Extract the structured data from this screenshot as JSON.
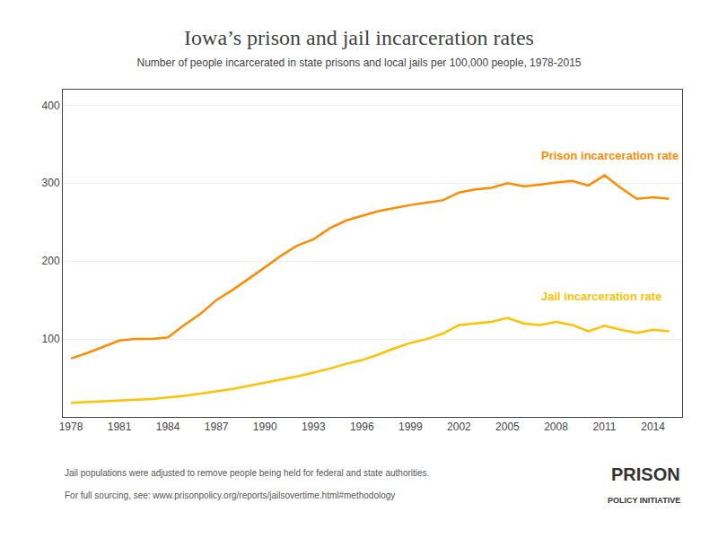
{
  "chart_data": {
    "type": "line",
    "title": "Iowa’s prison and jail incarceration rates",
    "subtitle": "Number of people incarcerated in state prisons and local jails per 100,000 people, 1978-2015",
    "x": [
      1978,
      1979,
      1980,
      1981,
      1982,
      1983,
      1984,
      1985,
      1986,
      1987,
      1988,
      1989,
      1990,
      1991,
      1992,
      1993,
      1994,
      1995,
      1996,
      1997,
      1998,
      1999,
      2000,
      2001,
      2002,
      2003,
      2004,
      2005,
      2006,
      2007,
      2008,
      2009,
      2010,
      2011,
      2012,
      2013,
      2014,
      2015
    ],
    "series": [
      {
        "name": "Prison incarceration rate",
        "color": "#ff8c00",
        "values": [
          75,
          82,
          90,
          98,
          100,
          100,
          102,
          118,
          132,
          150,
          163,
          177,
          192,
          207,
          220,
          228,
          242,
          252,
          258,
          264,
          268,
          272,
          275,
          278,
          288,
          292,
          294,
          300,
          296,
          298,
          301,
          303,
          297,
          310,
          294,
          280,
          282,
          280
        ]
      },
      {
        "name": "Jail incarceration rate",
        "color": "#ffc200",
        "values": [
          18,
          19,
          20,
          21,
          22,
          23,
          25,
          27,
          30,
          33,
          36,
          40,
          44,
          48,
          52,
          57,
          62,
          68,
          73,
          80,
          88,
          95,
          100,
          107,
          118,
          120,
          122,
          127,
          120,
          118,
          122,
          118,
          110,
          117,
          112,
          108,
          112,
          110
        ]
      }
    ],
    "xlim": [
      1977.5,
      2015.8
    ],
    "xticks": [
      1978,
      1981,
      1984,
      1987,
      1990,
      1993,
      1996,
      1999,
      2002,
      2005,
      2008,
      2011,
      2014
    ],
    "ylim": [
      0,
      420
    ],
    "yticks": [
      100,
      200,
      300,
      400
    ],
    "grid": true,
    "annotations": [
      {
        "text": "Prison incarceration rate",
        "x": 2007,
        "y": 335,
        "color": "#ff8c00"
      },
      {
        "text": "Jail incarceration rate",
        "x": 2007,
        "y": 155,
        "color": "#ffc200"
      }
    ],
    "footnotes": [
      "Jail populations were adjusted to remove people being held for federal and state authorities.",
      "For full sourcing, see: www.prisonpolicy.org/reports/jailsovertime.html#methodology"
    ],
    "logo": [
      "PRISON",
      "POLICY INITIATIVE"
    ]
  }
}
